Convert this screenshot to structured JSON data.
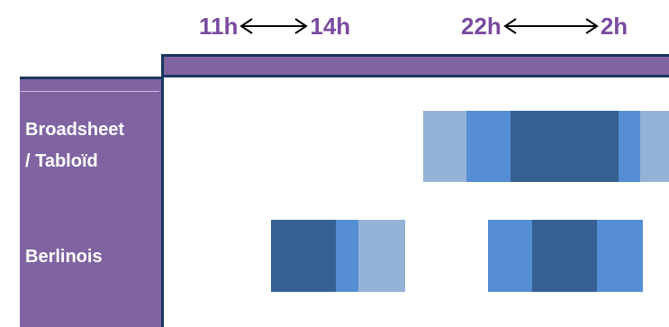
{
  "time_ranges": [
    {
      "start": "11h",
      "end": "14h"
    },
    {
      "start": "22h",
      "end": "2h"
    }
  ],
  "rows": [
    {
      "label_line1": "Broadsheet",
      "label_line2": "/ Tabloïd"
    },
    {
      "label_line1": "Berlinois"
    }
  ],
  "colors": {
    "header_text": "#7a4aa0",
    "band": "#8064a2",
    "border": "#17375e",
    "bar_light": "#95b3d7",
    "bar_medium": "#558ed5",
    "bar_dark": "#366092"
  },
  "bar_color_order": {
    "broadsheet": [
      "light",
      "medium",
      "dark",
      "medium",
      "light"
    ],
    "berlinois_midday": [
      "dark",
      "medium",
      "light"
    ],
    "berlinois_evening": [
      "medium",
      "dark",
      "medium"
    ]
  }
}
